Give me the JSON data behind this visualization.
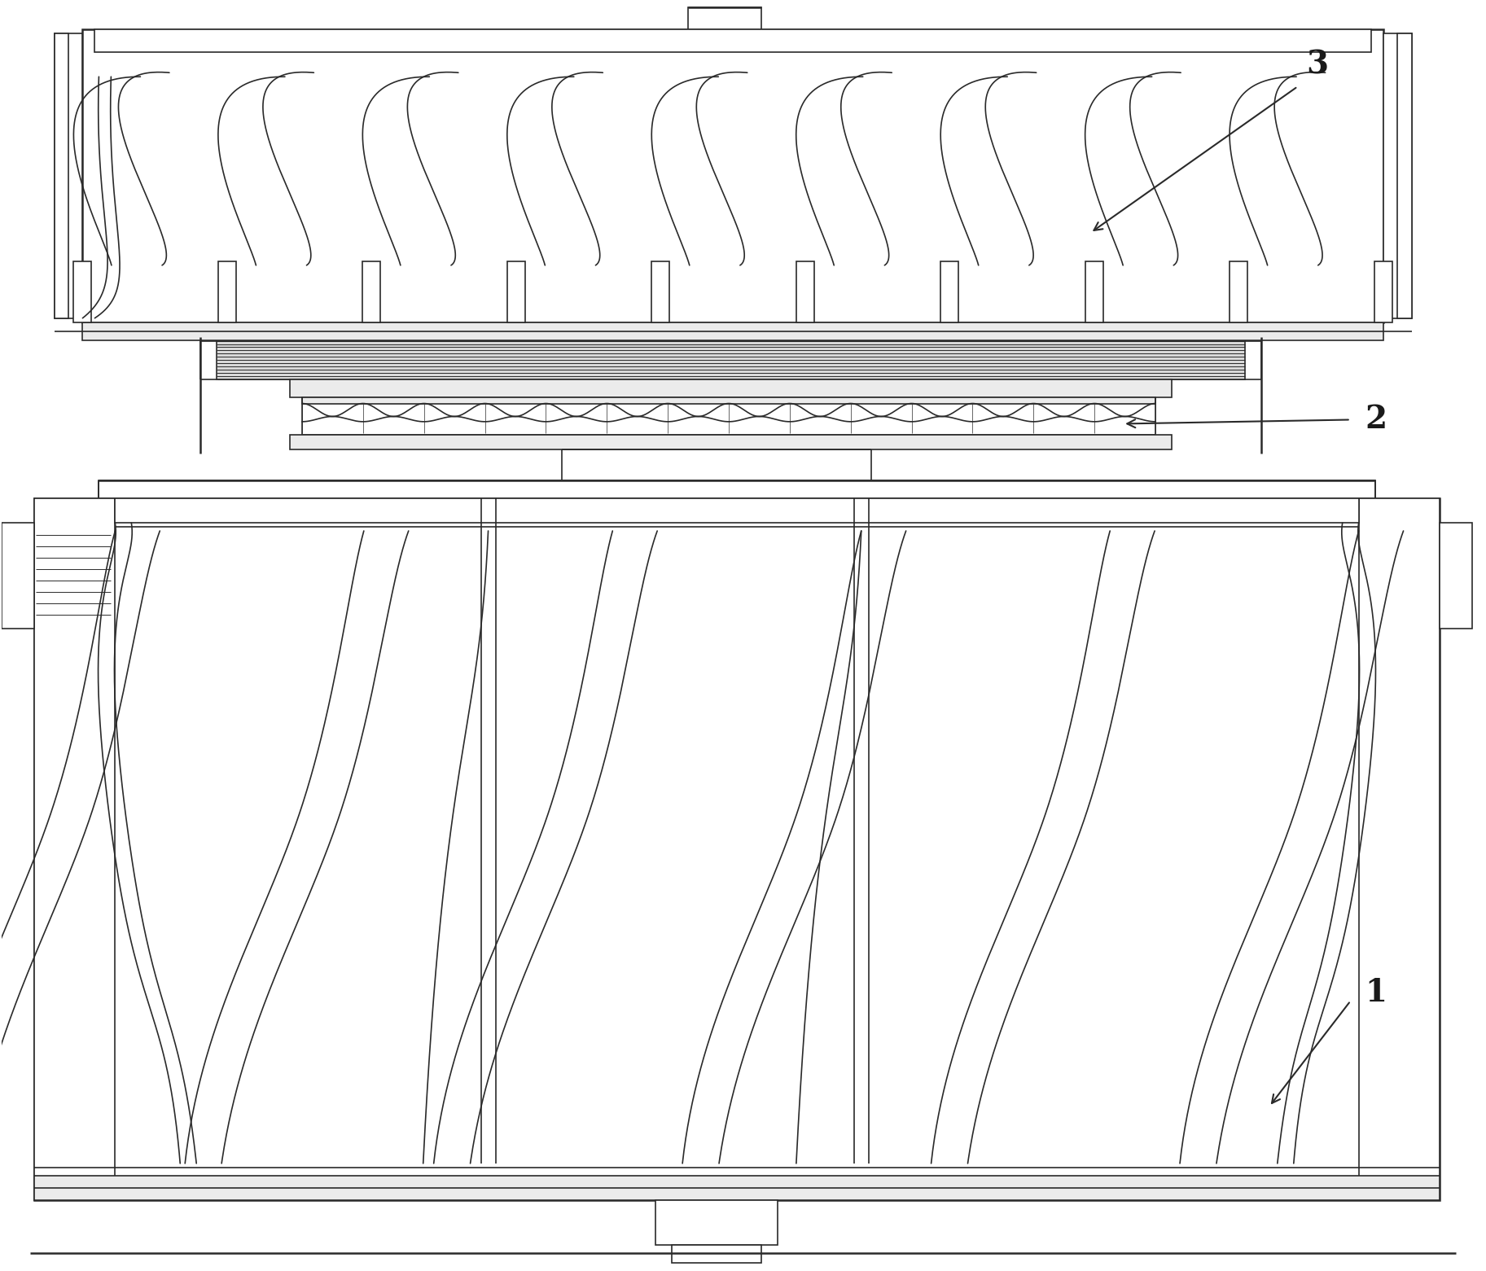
{
  "background_color": "#ffffff",
  "line_color": "#2a2a2a",
  "gray_fill": "#d8d8d8",
  "light_gray": "#ebebeb",
  "label_color": "#1a1a1a",
  "label_fontsize": 28,
  "fig_width": 18.25,
  "fig_height": 15.61,
  "label_1": "1",
  "label_2": "2",
  "label_3": "3"
}
